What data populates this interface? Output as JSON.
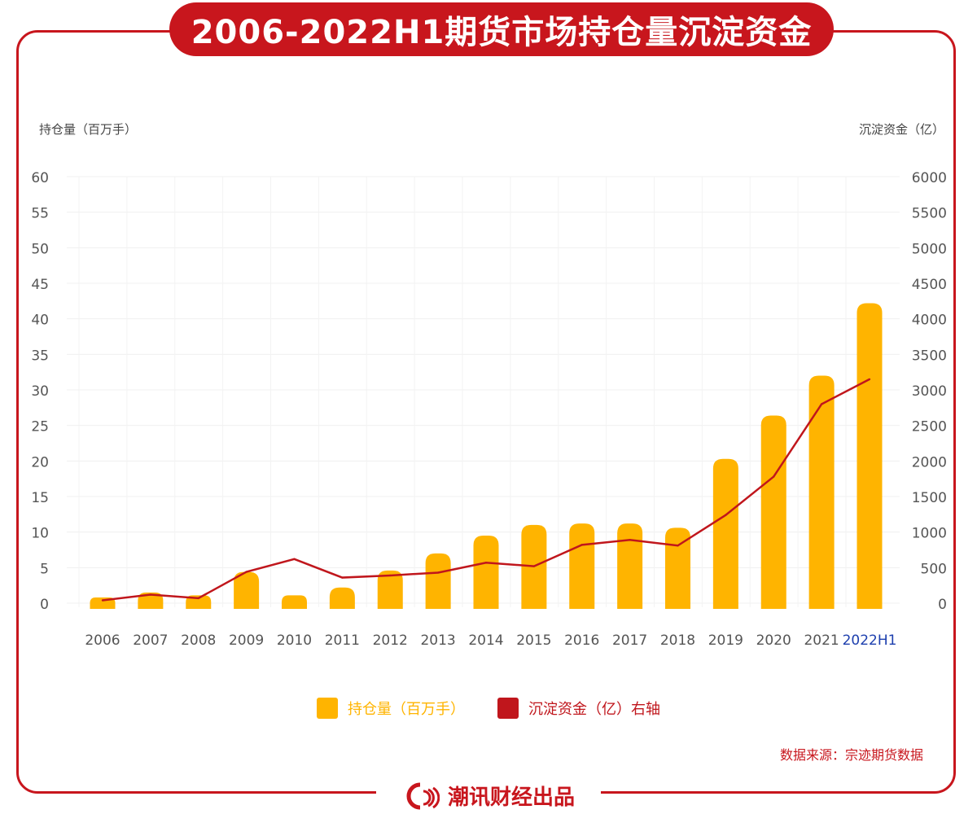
{
  "title": "2006-2022H1期货市场持仓量沉淀资金",
  "footer": {
    "brand": "潮讯财经出品"
  },
  "source": "数据来源：宗迹期货数据",
  "colors": {
    "bar": "#ffb400",
    "line": "#c0161c",
    "accent": "#c8161d",
    "highlight_label": "#1d3fae"
  },
  "chart_data": {
    "type": "bar+line",
    "categories": [
      "2006",
      "2007",
      "2008",
      "2009",
      "2010",
      "2011",
      "2012",
      "2013",
      "2014",
      "2015",
      "2016",
      "2017",
      "2018",
      "2019",
      "2020",
      "2021",
      "2022H1"
    ],
    "left_axis": {
      "label": "持仓量（百万手）",
      "range": [
        0,
        60
      ],
      "ticks": [
        0,
        5,
        10,
        15,
        20,
        25,
        30,
        35,
        40,
        45,
        50,
        55,
        60
      ]
    },
    "right_axis": {
      "label": "沉淀资金（亿）",
      "range": [
        0,
        6000
      ],
      "ticks": [
        0,
        500,
        1000,
        1500,
        2000,
        2500,
        3000,
        3500,
        4000,
        4500,
        5000,
        5500,
        6000
      ]
    },
    "series": [
      {
        "name": "持仓量（百万手）",
        "type": "bar",
        "axis": "left",
        "values": [
          0.8,
          1.5,
          1.1,
          4.4,
          1.1,
          2.2,
          4.6,
          7.0,
          9.5,
          11.0,
          11.2,
          11.2,
          10.6,
          20.3,
          26.4,
          32.0,
          42.2
        ]
      },
      {
        "name": "沉淀资金（亿）右轴",
        "type": "line",
        "axis": "right",
        "values": [
          40,
          120,
          70,
          440,
          620,
          360,
          390,
          430,
          570,
          520,
          820,
          890,
          810,
          1240,
          1780,
          2800,
          3150
        ]
      }
    ],
    "grid": true,
    "legend": "bottom"
  }
}
